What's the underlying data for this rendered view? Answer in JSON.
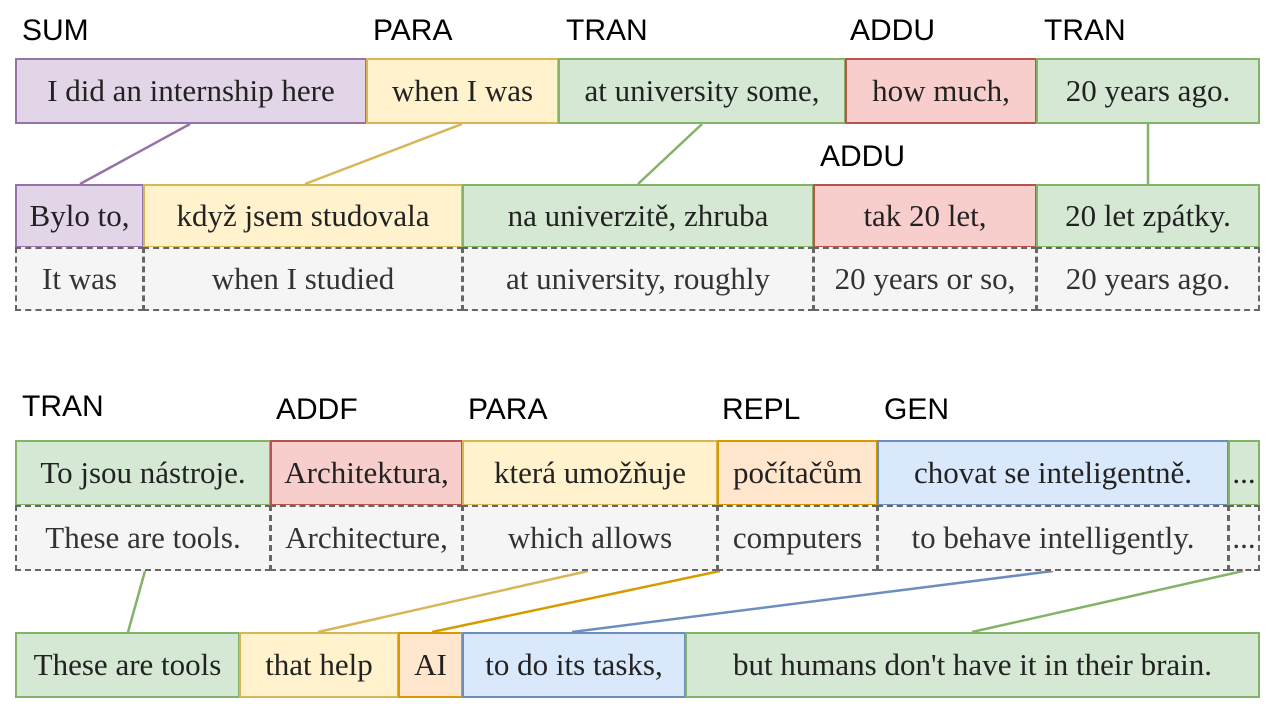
{
  "example1": {
    "labels": {
      "sum": "SUM",
      "para": "PARA",
      "tran1": "TRAN",
      "addu_top": "ADDU",
      "tran2": "TRAN",
      "addu_mid": "ADDU"
    },
    "english": [
      "I did an internship here",
      "when I was",
      "at university some,",
      "how much,",
      "20 years ago."
    ],
    "czech": [
      "Bylo to,",
      "když jsem studovala",
      "na univerzitě, zhruba",
      "tak 20 let,",
      "20 let zpátky."
    ],
    "gloss": [
      "It was",
      "when I studied",
      "at university, roughly",
      "20 years or so,",
      "20 years ago."
    ]
  },
  "example2": {
    "labels": {
      "tran": "TRAN",
      "addf": "ADDF",
      "para": "PARA",
      "repl": "REPL",
      "gen": "GEN"
    },
    "czech": [
      "To jsou nástroje.",
      "Architektura,",
      "která umožňuje",
      "počítačům",
      "chovat se inteligentně.",
      "..."
    ],
    "gloss": [
      "These are tools.",
      "Architecture,",
      "which allows",
      "computers",
      "to behave intelligently.",
      "..."
    ],
    "english": [
      "These are tools",
      "that help",
      "AI",
      "to do its tasks,",
      "but humans don't have it in their brain."
    ]
  },
  "colors": {
    "sum_fill": "#e1d5e7",
    "sum_stroke": "#9673a6",
    "para_fill": "#fff2cc",
    "para_stroke": "#d6b656",
    "tran_fill": "#d5e8d4",
    "tran_stroke": "#82b366",
    "addu_fill": "#f8cecc",
    "addu_stroke": "#b85450",
    "repl_fill": "#ffe6cc",
    "repl_stroke": "#d79b00",
    "gen_fill": "#dae8fc",
    "gen_stroke": "#6c8ebf",
    "gloss_fill": "#f5f5f5",
    "gloss_stroke": "#666666"
  }
}
